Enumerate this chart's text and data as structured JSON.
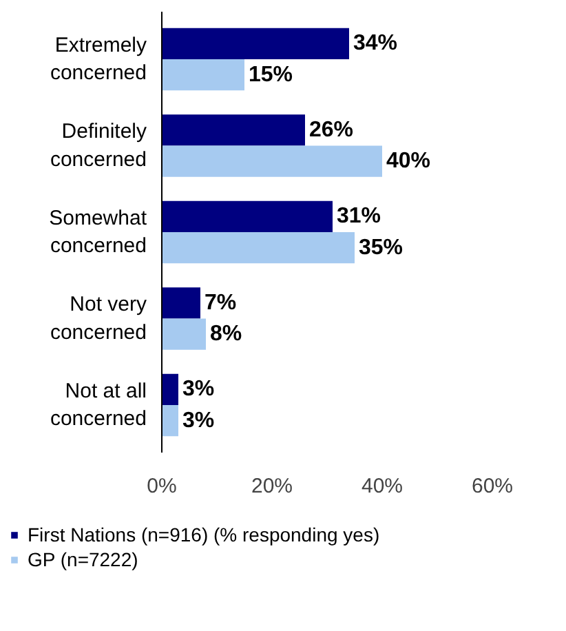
{
  "chart_data": {
    "type": "bar",
    "orientation": "horizontal",
    "categories": [
      "Extremely concerned",
      "Definitely concerned",
      "Somewhat concerned",
      "Not very concerned",
      "Not at all concerned"
    ],
    "series": [
      {
        "name": "First Nations (n=916) (% responding yes)",
        "color": "#000080",
        "values": [
          34,
          26,
          31,
          7,
          3
        ],
        "value_labels": [
          "34%",
          "26%",
          "31%",
          "7%",
          "3%"
        ]
      },
      {
        "name": "GP (n=7222)",
        "color": "#a6caf0",
        "values": [
          15,
          40,
          35,
          8,
          3
        ],
        "value_labels": [
          "15%",
          "40%",
          "35%",
          "8%",
          "3%"
        ]
      }
    ],
    "xlim": [
      0,
      60
    ],
    "xticks": [
      {
        "value": 0,
        "label": "0%"
      },
      {
        "value": 20,
        "label": "20%"
      },
      {
        "value": 40,
        "label": "40%"
      },
      {
        "value": 60,
        "label": "60%"
      }
    ],
    "grid": false,
    "legend": "bottom"
  }
}
